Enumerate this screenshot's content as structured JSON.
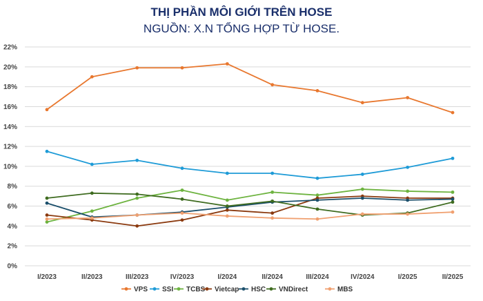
{
  "header": {
    "title": "THỊ PHẦN MÔI GIỚI TRÊN HOSE",
    "subtitle": "NGUỒN: X.N TỔNG HỢP TỪ HOSE."
  },
  "chart_data": {
    "type": "line",
    "title": "THỊ PHẦN MÔI GIỚI TRÊN HOSE",
    "subtitle": "NGUỒN: X.N TỔNG HỢP TỪ HOSE.",
    "xlabel": "",
    "ylabel": "",
    "ylim": [
      0,
      22
    ],
    "ytick_step": 2,
    "ytick_suffix": "%",
    "grid": true,
    "legend": "bottom",
    "categories": [
      "I/2023",
      "II/2023",
      "III/2023",
      "IV/2023",
      "I/2024",
      "II/2024",
      "III/2024",
      "IV/2024",
      "I/2025",
      "II/2025"
    ],
    "series": [
      {
        "name": "VPS",
        "color": "#e8772e",
        "values": [
          15.7,
          19.0,
          19.9,
          19.9,
          20.3,
          18.2,
          17.6,
          16.4,
          16.9,
          15.4
        ]
      },
      {
        "name": "SSI",
        "color": "#1e9bd7",
        "values": [
          11.5,
          10.2,
          10.6,
          9.8,
          9.3,
          9.3,
          8.8,
          9.2,
          9.9,
          10.8
        ]
      },
      {
        "name": "TCBS",
        "color": "#6db33f",
        "values": [
          4.4,
          5.5,
          6.8,
          7.6,
          6.6,
          7.4,
          7.1,
          7.7,
          7.5,
          7.4
        ]
      },
      {
        "name": "Vietcap",
        "color": "#8b3a0f",
        "values": [
          5.1,
          4.6,
          4.0,
          4.6,
          5.6,
          5.3,
          6.8,
          7.0,
          6.8,
          6.8
        ]
      },
      {
        "name": "HSC",
        "color": "#1b4f6b",
        "values": [
          6.3,
          4.9,
          5.1,
          5.4,
          5.9,
          6.4,
          6.6,
          6.8,
          6.6,
          6.7
        ]
      },
      {
        "name": "VNDirect",
        "color": "#3e6b1f",
        "values": [
          6.8,
          7.3,
          7.2,
          6.7,
          6.0,
          6.5,
          5.7,
          5.1,
          5.3,
          6.4
        ]
      },
      {
        "name": "MBS",
        "color": "#f0a070",
        "values": [
          4.7,
          4.8,
          5.1,
          5.3,
          5.0,
          4.8,
          4.7,
          5.2,
          5.2,
          5.4
        ]
      }
    ]
  }
}
